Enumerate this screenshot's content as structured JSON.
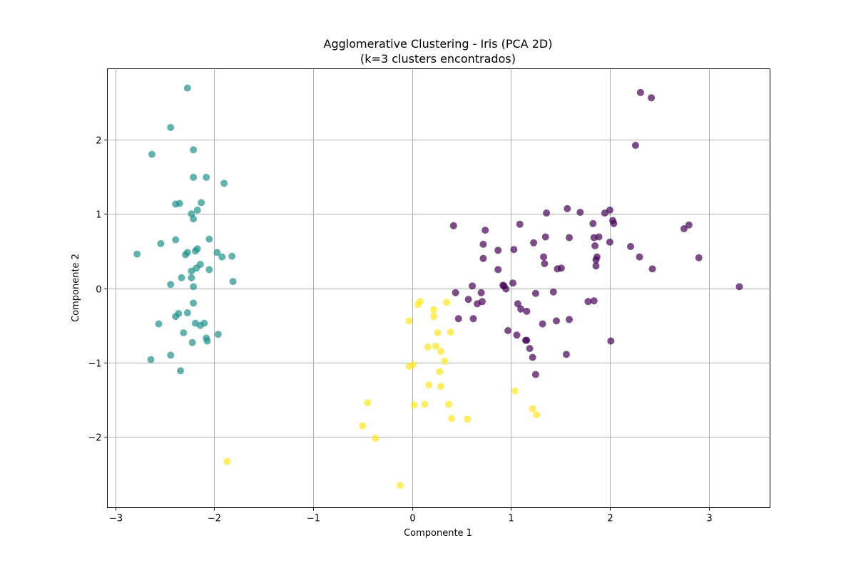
{
  "chart_data": {
    "type": "scatter",
    "title": "Agglomerative Clustering - Iris (PCA 2D)",
    "subtitle": "(k=3 clusters encontrados)",
    "xlabel": "Componente 1",
    "ylabel": "Componente 2",
    "xlim": [
      -3.08,
      3.62
    ],
    "ylim": [
      -2.95,
      2.95
    ],
    "xticks": [
      -3,
      -2,
      -1,
      0,
      1,
      2,
      3
    ],
    "xtick_labels": [
      "−3",
      "−2",
      "−1",
      "0",
      "1",
      "2",
      "3"
    ],
    "yticks": [
      -2,
      -1,
      0,
      1,
      2
    ],
    "ytick_labels": [
      "−2",
      "−1",
      "0",
      "1",
      "2"
    ],
    "grid": true,
    "colors": {
      "cluster_0": "#440154",
      "cluster_1": "#21918c",
      "cluster_2": "#fde725"
    },
    "series": [
      {
        "color": "#21918c",
        "points": [
          [
            -2.27,
            2.69
          ],
          [
            -2.44,
            2.16
          ],
          [
            -2.63,
            1.8
          ],
          [
            -2.21,
            1.86
          ],
          [
            -2.21,
            1.49
          ],
          [
            -2.08,
            1.49
          ],
          [
            -1.9,
            1.41
          ],
          [
            -2.35,
            1.14
          ],
          [
            -2.39,
            1.13
          ],
          [
            -2.13,
            1.15
          ],
          [
            -2.17,
            1.05
          ],
          [
            -2.23,
            1.0
          ],
          [
            -2.21,
            0.93
          ],
          [
            -2.39,
            0.65
          ],
          [
            -2.05,
            0.66
          ],
          [
            -2.54,
            0.6
          ],
          [
            -2.78,
            0.46
          ],
          [
            -2.27,
            0.48
          ],
          [
            -2.29,
            0.45
          ],
          [
            -2.17,
            0.53
          ],
          [
            -2.19,
            0.5
          ],
          [
            -1.97,
            0.48
          ],
          [
            -1.92,
            0.42
          ],
          [
            -1.82,
            0.43
          ],
          [
            -2.14,
            0.32
          ],
          [
            -2.18,
            0.27
          ],
          [
            -2.23,
            0.23
          ],
          [
            -2.05,
            0.25
          ],
          [
            -2.33,
            0.14
          ],
          [
            -2.23,
            0.14
          ],
          [
            -2.44,
            0.05
          ],
          [
            -2.21,
            0.02
          ],
          [
            -1.81,
            0.09
          ],
          [
            -2.21,
            -0.2
          ],
          [
            -2.36,
            -0.34
          ],
          [
            -2.27,
            -0.33
          ],
          [
            -2.39,
            -0.38
          ],
          [
            -2.56,
            -0.48
          ],
          [
            -2.19,
            -0.47
          ],
          [
            -2.14,
            -0.5
          ],
          [
            -2.1,
            -0.47
          ],
          [
            -2.31,
            -0.6
          ],
          [
            -2.08,
            -0.67
          ],
          [
            -2.07,
            -0.71
          ],
          [
            -1.96,
            -0.62
          ],
          [
            -2.22,
            -0.73
          ],
          [
            -2.44,
            -0.9
          ],
          [
            -2.64,
            -0.96
          ],
          [
            -2.34,
            -1.11
          ]
        ]
      },
      {
        "color": "#fde725",
        "points": [
          [
            -1.87,
            -2.33
          ],
          [
            0.08,
            -0.18
          ],
          [
            0.06,
            -0.22
          ],
          [
            0.22,
            -0.29
          ],
          [
            0.22,
            -0.38
          ],
          [
            0.35,
            -0.19
          ],
          [
            0.39,
            -0.59
          ],
          [
            0.26,
            -0.6
          ],
          [
            -0.03,
            -0.44
          ],
          [
            0.16,
            -0.79
          ],
          [
            0.24,
            -0.78
          ],
          [
            0.29,
            -0.85
          ],
          [
            0.33,
            -0.98
          ],
          [
            -0.03,
            -1.05
          ],
          [
            0.01,
            -1.03
          ],
          [
            0.28,
            -1.12
          ],
          [
            0.17,
            -1.3
          ],
          [
            0.29,
            -1.32
          ],
          [
            0.02,
            -1.57
          ],
          [
            0.13,
            -1.56
          ],
          [
            0.37,
            -1.56
          ],
          [
            0.4,
            -1.75
          ],
          [
            0.56,
            -1.76
          ],
          [
            -0.45,
            -1.54
          ],
          [
            -0.5,
            -1.85
          ],
          [
            -0.37,
            -2.02
          ],
          [
            -0.12,
            -2.65
          ],
          [
            1.04,
            -1.38
          ],
          [
            1.22,
            -1.62
          ],
          [
            1.26,
            -1.7
          ]
        ]
      },
      {
        "color": "#440154",
        "points": [
          [
            2.31,
            2.63
          ],
          [
            2.42,
            2.56
          ],
          [
            2.26,
            1.92
          ],
          [
            1.57,
            1.07
          ],
          [
            1.7,
            1.02
          ],
          [
            1.36,
            1.01
          ],
          [
            1.95,
            1.01
          ],
          [
            2.0,
            1.05
          ],
          [
            2.03,
            0.91
          ],
          [
            2.04,
            0.87
          ],
          [
            0.42,
            0.84
          ],
          [
            1.09,
            0.86
          ],
          [
            1.83,
            0.87
          ],
          [
            2.8,
            0.85
          ],
          [
            2.75,
            0.8
          ],
          [
            0.74,
            0.78
          ],
          [
            1.35,
            0.69
          ],
          [
            1.59,
            0.68
          ],
          [
            1.84,
            0.68
          ],
          [
            1.89,
            0.69
          ],
          [
            0.72,
            0.59
          ],
          [
            1.23,
            0.61
          ],
          [
            2.0,
            0.62
          ],
          [
            1.85,
            0.57
          ],
          [
            2.21,
            0.56
          ],
          [
            0.87,
            0.51
          ],
          [
            1.03,
            0.52
          ],
          [
            1.86,
            0.38
          ],
          [
            1.87,
            0.42
          ],
          [
            2.3,
            0.42
          ],
          [
            2.9,
            0.41
          ],
          [
            0.72,
            0.4
          ],
          [
            1.33,
            0.42
          ],
          [
            1.34,
            0.33
          ],
          [
            1.47,
            0.26
          ],
          [
            1.51,
            0.27
          ],
          [
            1.86,
            0.3
          ],
          [
            2.43,
            0.26
          ],
          [
            0.87,
            0.25
          ],
          [
            0.61,
            0.03
          ],
          [
            0.92,
            0.04
          ],
          [
            0.93,
            0.03
          ],
          [
            0.95,
            -0.01
          ],
          [
            1.02,
            0.07
          ],
          [
            3.31,
            0.02
          ],
          [
            0.44,
            -0.06
          ],
          [
            0.7,
            -0.06
          ],
          [
            1.25,
            -0.07
          ],
          [
            1.43,
            -0.05
          ],
          [
            0.57,
            -0.15
          ],
          [
            0.66,
            -0.21
          ],
          [
            0.71,
            -0.18
          ],
          [
            1.07,
            -0.21
          ],
          [
            1.1,
            -0.28
          ],
          [
            1.16,
            -0.31
          ],
          [
            1.78,
            -0.18
          ],
          [
            1.84,
            -0.17
          ],
          [
            0.47,
            -0.41
          ],
          [
            0.62,
            -0.41
          ],
          [
            1.32,
            -0.48
          ],
          [
            1.46,
            -0.44
          ],
          [
            1.59,
            -0.42
          ],
          [
            0.97,
            -0.57
          ],
          [
            1.06,
            -0.63
          ],
          [
            1.15,
            -0.7
          ],
          [
            1.16,
            -0.7
          ],
          [
            2.01,
            -0.71
          ],
          [
            1.19,
            -0.81
          ],
          [
            1.22,
            -0.93
          ],
          [
            1.56,
            -0.89
          ],
          [
            1.25,
            -1.16
          ]
        ]
      }
    ]
  }
}
